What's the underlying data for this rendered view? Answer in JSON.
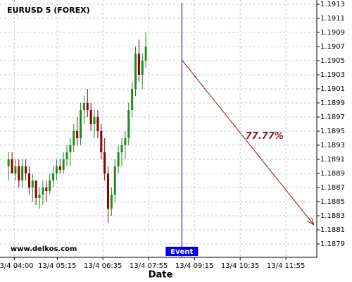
{
  "chart_data": {
    "type": "candlestick",
    "title": "EURUSD 5 (FOREX)",
    "x_label": "Date",
    "watermark": "www.delkos.com",
    "bull_color": "#1f8a1f",
    "bear_color": "#8b0000",
    "grid": true,
    "xlim": [
      -25,
      529
    ],
    "ylim": [
      1.18771,
      1.19136
    ],
    "xticks": [
      {
        "value": 0,
        "label": "13/4 04:00"
      },
      {
        "value": 75,
        "label": "13/4 05:15"
      },
      {
        "value": 155,
        "label": "13/4 06:35"
      },
      {
        "value": 235,
        "label": "13/4 07:55"
      },
      {
        "value": 315,
        "label": "13/4 09:15"
      },
      {
        "value": 395,
        "label": "13/4 10:35"
      },
      {
        "value": 475,
        "label": "13/4 11:55"
      }
    ],
    "yticks": [
      1.1879,
      1.1881,
      1.1883,
      1.1885,
      1.1887,
      1.1889,
      1.1891,
      1.1893,
      1.1895,
      1.1897,
      1.1899,
      1.1901,
      1.1903,
      1.1905,
      1.1907,
      1.1909,
      1.1911,
      1.1913
    ],
    "x": [
      -10,
      -4,
      2,
      8,
      14,
      20,
      26,
      32,
      38,
      44,
      50,
      56,
      62,
      68,
      74,
      80,
      86,
      92,
      98,
      104,
      110,
      116,
      122,
      128,
      134,
      140,
      146,
      152,
      158,
      164,
      170,
      176,
      182,
      188,
      194,
      200,
      206,
      212,
      218,
      224,
      230
    ],
    "open": [
      1.189,
      1.1891,
      1.1889,
      1.189,
      1.1888,
      1.189,
      1.1889,
      1.1887,
      1.1888,
      1.18855,
      1.1886,
      1.1887,
      1.18865,
      1.1888,
      1.1889,
      1.189,
      1.18895,
      1.1891,
      1.1892,
      1.1893,
      1.1895,
      1.1894,
      1.1898,
      1.1899,
      1.1898,
      1.1896,
      1.1897,
      1.1895,
      1.1892,
      1.1889,
      1.1884,
      1.1886,
      1.189,
      1.1892,
      1.1893,
      1.1894,
      1.1898,
      1.1901,
      1.1906,
      1.1903,
      1.1905
    ],
    "high": [
      1.1892,
      1.1892,
      1.1891,
      1.1891,
      1.1891,
      1.1891,
      1.189,
      1.1889,
      1.1888,
      1.1887,
      1.1888,
      1.1888,
      1.1889,
      1.189,
      1.1891,
      1.1891,
      1.1892,
      1.1893,
      1.1894,
      1.1896,
      1.1897,
      1.1899,
      1.19,
      1.1901,
      1.1899,
      1.1898,
      1.1898,
      1.1896,
      1.1894,
      1.189,
      1.1887,
      1.1891,
      1.1893,
      1.1894,
      1.1895,
      1.1899,
      1.1902,
      1.1907,
      1.1908,
      1.1906,
      1.1909
    ],
    "low": [
      1.1888,
      1.1889,
      1.1888,
      1.1887,
      1.1887,
      1.1888,
      1.1886,
      1.1885,
      1.18845,
      1.1884,
      1.18845,
      1.1885,
      1.1886,
      1.1887,
      1.1888,
      1.1889,
      1.1889,
      1.189,
      1.189,
      1.1892,
      1.1893,
      1.1893,
      1.1896,
      1.1897,
      1.1895,
      1.1894,
      1.1894,
      1.1891,
      1.1888,
      1.1882,
      1.1883,
      1.1885,
      1.1889,
      1.189,
      1.1891,
      1.1893,
      1.1897,
      1.19,
      1.1902,
      1.1901,
      1.1904
    ],
    "close": [
      1.1891,
      1.1889,
      1.189,
      1.1888,
      1.189,
      1.1889,
      1.1887,
      1.1888,
      1.18855,
      1.1886,
      1.1887,
      1.18865,
      1.1888,
      1.1889,
      1.189,
      1.18895,
      1.1891,
      1.1892,
      1.1893,
      1.1895,
      1.1894,
      1.1898,
      1.1899,
      1.1898,
      1.1896,
      1.1897,
      1.1895,
      1.1892,
      1.1889,
      1.1884,
      1.1886,
      1.189,
      1.1892,
      1.1893,
      1.1894,
      1.1898,
      1.1901,
      1.1906,
      1.1903,
      1.1905,
      1.1907
    ],
    "event": {
      "label": "Event",
      "x": 293,
      "color": "#00008b"
    },
    "prediction": {
      "label": "77.77%",
      "x": [
        293,
        523
      ],
      "y": [
        1.19051,
        1.18818
      ],
      "color": "#8b1a1a"
    }
  }
}
